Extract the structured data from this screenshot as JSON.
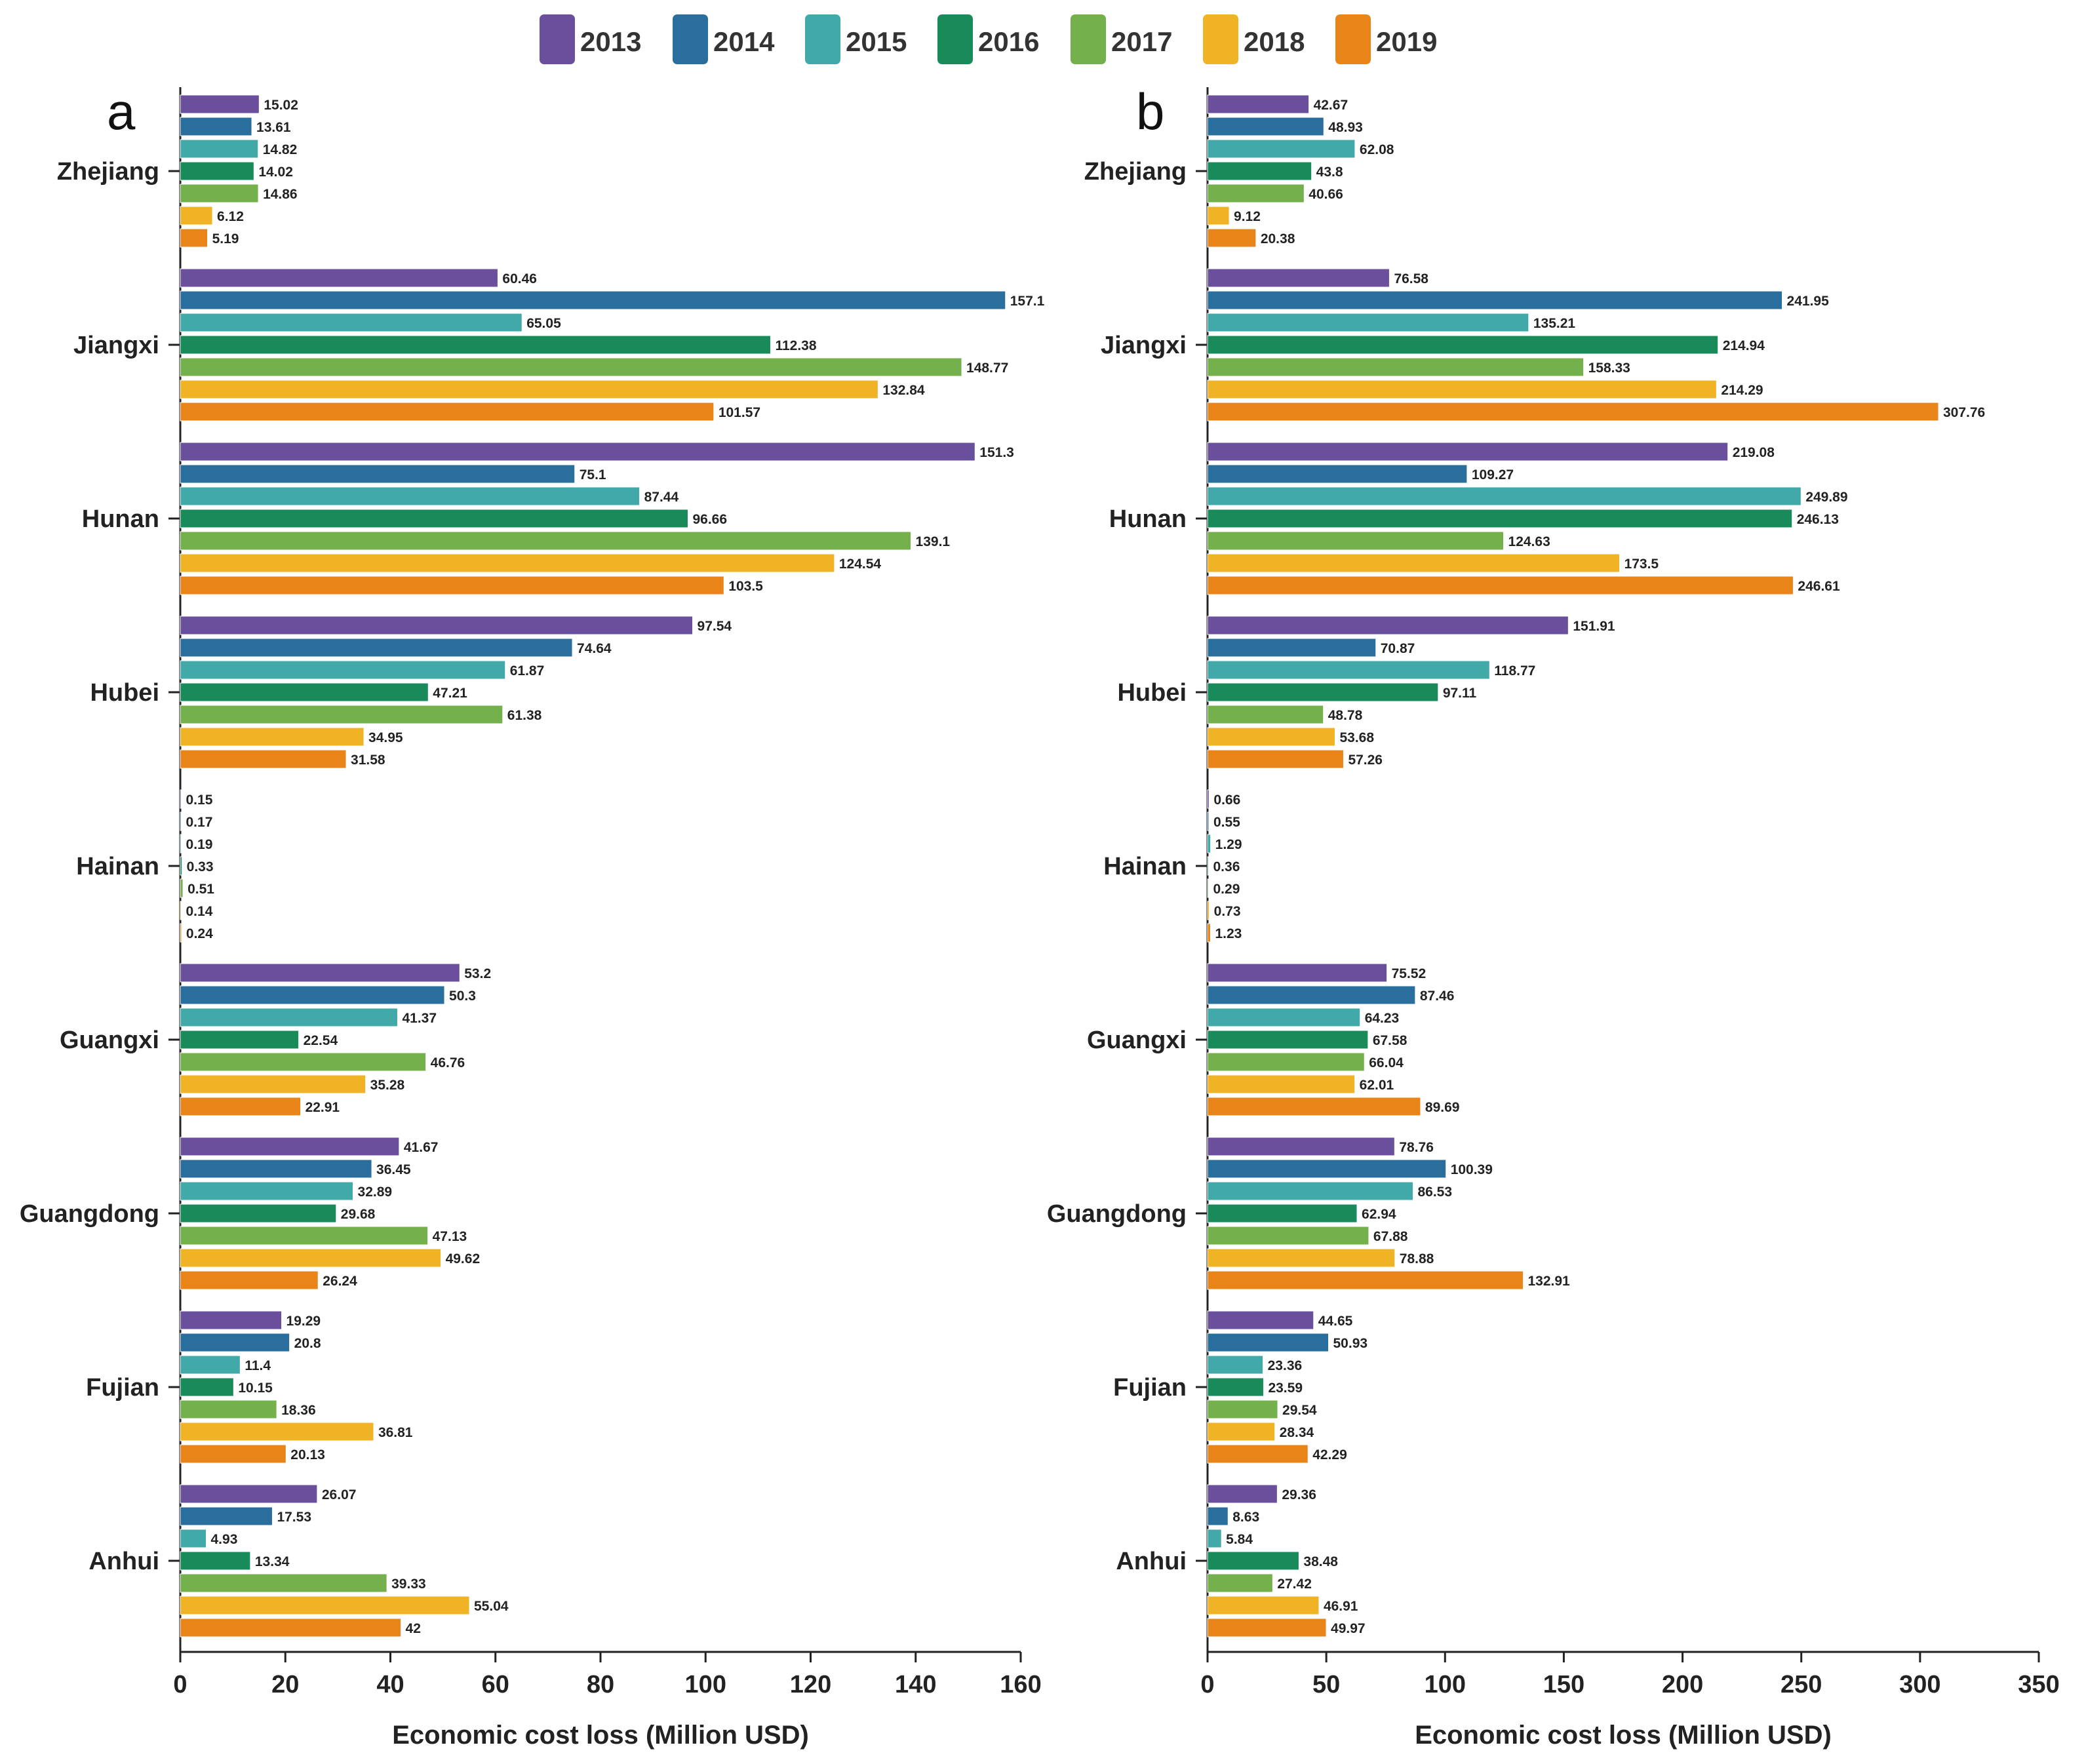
{
  "legend": {
    "entries": [
      "2013",
      "2014",
      "2015",
      "2016",
      "2017",
      "2018",
      "2019"
    ],
    "colors": [
      "#6a4f9c",
      "#2a6e9e",
      "#41aaa8",
      "#198a5a",
      "#74b04b",
      "#f0b326",
      "#e88418"
    ]
  },
  "chart_data": [
    {
      "type": "bar",
      "orientation": "horizontal",
      "panel_label": "a",
      "xlabel": "Economic cost loss (Million USD)",
      "xlim": [
        0,
        160
      ],
      "xticks": [
        "0",
        "20",
        "40",
        "60",
        "80",
        "100",
        "120",
        "140",
        "160"
      ],
      "categories": [
        "Zhejiang",
        "Jiangxi",
        "Hunan",
        "Hubei",
        "Hainan",
        "Guangxi",
        "Guangdong",
        "Fujian",
        "Anhui"
      ],
      "series": [
        {
          "name": "2013",
          "values": [
            15.02,
            60.46,
            151.3,
            97.54,
            0.15,
            53.2,
            41.67,
            19.29,
            26.07
          ]
        },
        {
          "name": "2014",
          "values": [
            13.61,
            157.1,
            75.1,
            74.64,
            0.17,
            50.3,
            36.45,
            20.8,
            17.53
          ]
        },
        {
          "name": "2015",
          "values": [
            14.82,
            65.05,
            87.44,
            61.87,
            0.19,
            41.37,
            32.89,
            11.4,
            4.93
          ]
        },
        {
          "name": "2016",
          "values": [
            14.02,
            112.38,
            96.66,
            47.21,
            0.33,
            22.54,
            29.68,
            10.15,
            13.34
          ]
        },
        {
          "name": "2017",
          "values": [
            14.86,
            148.77,
            139.1,
            61.38,
            0.51,
            46.76,
            47.13,
            18.36,
            39.33
          ]
        },
        {
          "name": "2018",
          "values": [
            6.12,
            132.84,
            124.54,
            34.95,
            0.14,
            35.28,
            49.62,
            36.81,
            55.04
          ]
        },
        {
          "name": "2019",
          "values": [
            5.19,
            101.57,
            103.5,
            31.58,
            0.24,
            22.91,
            26.24,
            20.13,
            42
          ]
        }
      ]
    },
    {
      "type": "bar",
      "orientation": "horizontal",
      "panel_label": "b",
      "xlabel": "Economic cost loss (Million USD)",
      "xlim": [
        0,
        350
      ],
      "xticks": [
        "0",
        "50",
        "100",
        "150",
        "200",
        "250",
        "300",
        "350"
      ],
      "categories": [
        "Zhejiang",
        "Jiangxi",
        "Hunan",
        "Hubei",
        "Hainan",
        "Guangxi",
        "Guangdong",
        "Fujian",
        "Anhui"
      ],
      "series": [
        {
          "name": "2013",
          "values": [
            42.67,
            76.58,
            219.08,
            151.91,
            0.66,
            75.52,
            78.76,
            44.65,
            29.36
          ]
        },
        {
          "name": "2014",
          "values": [
            48.93,
            241.95,
            109.27,
            70.87,
            0.55,
            87.46,
            100.39,
            50.93,
            8.63
          ]
        },
        {
          "name": "2015",
          "values": [
            62.08,
            135.21,
            249.89,
            118.77,
            1.29,
            64.23,
            86.53,
            23.36,
            5.84
          ]
        },
        {
          "name": "2016",
          "values": [
            43.8,
            214.94,
            246.13,
            97.11,
            0.36,
            67.58,
            62.94,
            23.59,
            38.48
          ]
        },
        {
          "name": "2017",
          "values": [
            40.66,
            158.33,
            124.63,
            48.78,
            0.29,
            66.04,
            67.88,
            29.54,
            27.42
          ]
        },
        {
          "name": "2018",
          "values": [
            9.12,
            214.29,
            173.5,
            53.68,
            0.73,
            62.01,
            78.88,
            28.34,
            46.91
          ]
        },
        {
          "name": "2019",
          "values": [
            20.38,
            307.76,
            246.61,
            57.26,
            1.23,
            89.69,
            132.91,
            42.29,
            49.97
          ]
        }
      ]
    }
  ]
}
